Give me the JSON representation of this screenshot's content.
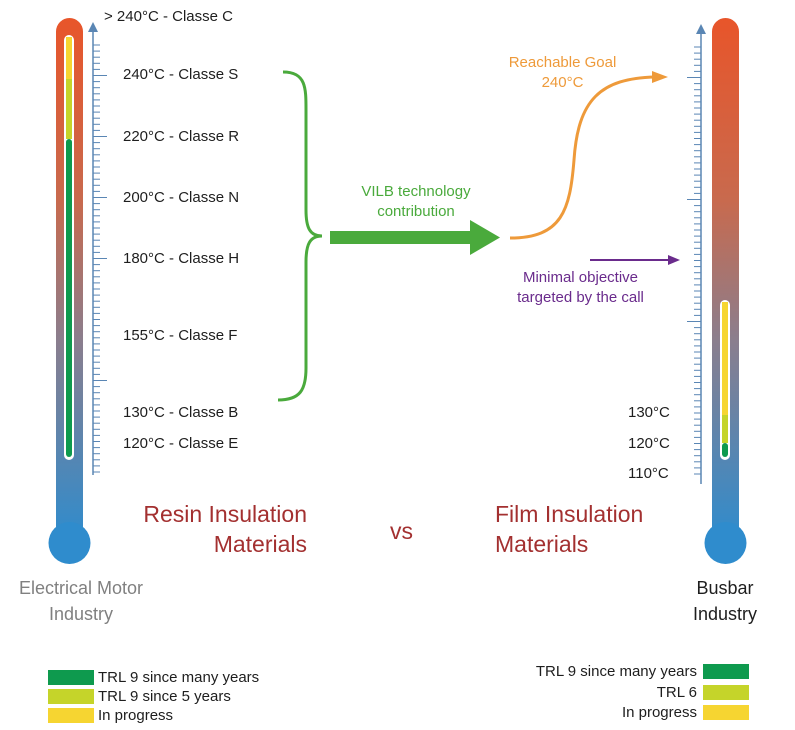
{
  "colors": {
    "trl9_long": "#0e9a4e",
    "trl9_5y": "#c5d42a",
    "in_progress": "#f6d531",
    "thermo_top": "#e8552a",
    "thermo_bottom": "#2f8ccd",
    "scale_blue": "#5a86b4",
    "brace_green": "#4aaa3c",
    "goal_orange": "#ee9a3a",
    "objective_purple": "#6a2b8c",
    "title_red": "#a33030"
  },
  "left_scale": {
    "top_label": "> 240°C - Classe C",
    "labels": [
      {
        "text": "240°C - Classe S"
      },
      {
        "text": "220°C - Classe R"
      },
      {
        "text": "200°C - Classe N"
      },
      {
        "text": "180°C - Classe H"
      },
      {
        "text": "155°C - Classe F"
      },
      {
        "text": "130°C - Classe B"
      },
      {
        "text": "120°C - Classe E"
      }
    ]
  },
  "right_scale": {
    "labels": [
      "130°C",
      "120°C",
      "110°C"
    ]
  },
  "arrow_label": [
    "VILB technology",
    "contribution"
  ],
  "goal_label": [
    "Reachable Goal",
    "240°C"
  ],
  "objective_label": [
    "Minimal objective",
    "targeted by the call"
  ],
  "left_title": [
    "Resin Insulation",
    "Materials"
  ],
  "vs": "vs",
  "right_title": [
    "Film Insulation",
    "Materials"
  ],
  "left_industry": [
    "Electrical Motor",
    "Industry"
  ],
  "right_industry": [
    "Busbar",
    "Industry"
  ],
  "left_legend": [
    {
      "label": "TRL 9 since many years",
      "color_key": "trl9_long"
    },
    {
      "label": "TRL 9 since 5 years",
      "color_key": "trl9_5y"
    },
    {
      "label": "In progress",
      "color_key": "in_progress"
    }
  ],
  "right_legend": [
    {
      "label": "TRL 9 since many years",
      "color_key": "trl9_long"
    },
    {
      "label": "TRL 6",
      "color_key": "trl9_5y"
    },
    {
      "label": "In progress",
      "color_key": "in_progress"
    }
  ]
}
